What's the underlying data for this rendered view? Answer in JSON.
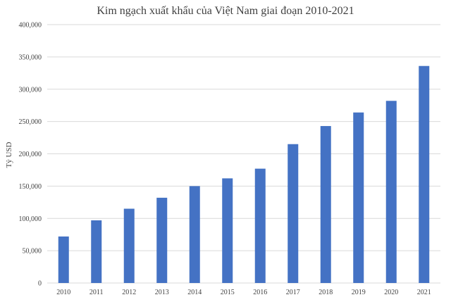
{
  "chart_data": {
    "type": "bar",
    "title": "Kim ngạch xuất khẩu của Việt Nam giai đoạn 2010-2021",
    "xlabel": "",
    "ylabel": "Tỷ USD",
    "categories": [
      "2010",
      "2011",
      "2012",
      "2013",
      "2014",
      "2015",
      "2016",
      "2017",
      "2018",
      "2019",
      "2020",
      "2021"
    ],
    "values": [
      72000,
      97000,
      115000,
      132000,
      150000,
      162000,
      177000,
      215000,
      243000,
      264000,
      282000,
      336000
    ],
    "ylim": [
      0,
      400000
    ],
    "yticks": [
      "0",
      "50,000",
      "100,000",
      "150,000",
      "200,000",
      "250,000",
      "300,000",
      "350,000",
      "400,000"
    ],
    "grid": true,
    "colors": {
      "bar": "#4472C4",
      "grid": "#d9d9d9",
      "text": "#404040"
    }
  }
}
